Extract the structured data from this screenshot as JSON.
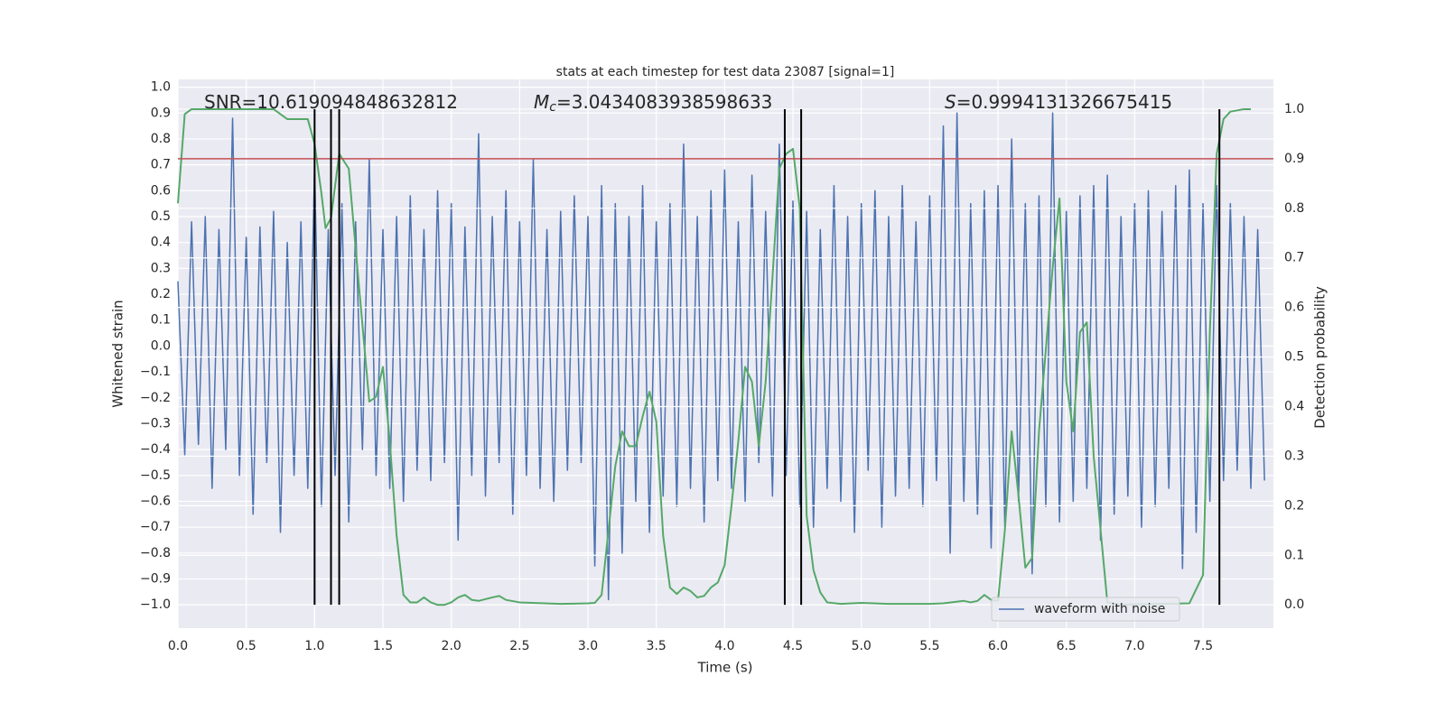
{
  "chart_data": {
    "type": "line",
    "title": "stats at each timestep for test data 23087 [signal=1]",
    "xlabel": "Time (s)",
    "ylabel": "Whitened strain",
    "y2label": "Detection probability",
    "xlim": [
      0,
      8.015
    ],
    "ylim": [
      -1.09,
      1.03
    ],
    "y2lim": [
      -0.047,
      1.06
    ],
    "grid": true,
    "legend": "lower right",
    "xticks": [
      {
        "value": 0,
        "label": "0.0"
      },
      0.5,
      {
        "value": 1,
        "label": "1.0"
      },
      1.5,
      {
        "value": 2,
        "label": "2.0"
      },
      2.5,
      {
        "value": 3,
        "label": "3.0"
      },
      3.5,
      {
        "value": 4,
        "label": "4.0"
      },
      4.5,
      {
        "value": 5,
        "label": "5.0"
      },
      5.5,
      {
        "value": 6,
        "label": "6.0"
      },
      6.5,
      {
        "value": 7,
        "label": "7.0"
      },
      7.5
    ],
    "yticks": [
      {
        "value": -1,
        "label": "−1.0"
      },
      {
        "value": -0.9,
        "label": "−0.9"
      },
      {
        "value": -0.8,
        "label": "−0.8"
      },
      {
        "value": -0.7,
        "label": "−0.7"
      },
      {
        "value": -0.6,
        "label": "−0.6"
      },
      {
        "value": -0.5,
        "label": "−0.5"
      },
      {
        "value": -0.4,
        "label": "−0.4"
      },
      {
        "value": -0.3,
        "label": "−0.3"
      },
      {
        "value": -0.2,
        "label": "−0.2"
      },
      {
        "value": -0.1,
        "label": "−0.1"
      },
      {
        "value": 0,
        "label": "0.0"
      },
      0.1,
      0.2,
      0.3,
      0.4,
      0.5,
      0.6,
      0.7,
      0.8,
      0.9,
      {
        "value": 1,
        "label": "1.0"
      }
    ],
    "y2ticks": [
      {
        "value": 0,
        "label": "0.0"
      },
      0.1,
      0.2,
      0.3,
      0.4,
      0.5,
      0.6,
      0.7,
      0.8,
      0.9,
      {
        "value": 1,
        "label": "1.0"
      }
    ],
    "series": [
      {
        "name": "waveform with noise",
        "color": "#4c72b0",
        "x": [
          0.0,
          0.05,
          0.1,
          0.15,
          0.2,
          0.25,
          0.3,
          0.35,
          0.4,
          0.45,
          0.5,
          0.55,
          0.6,
          0.65,
          0.7,
          0.75,
          0.8,
          0.85,
          0.9,
          0.95,
          1.0,
          1.05,
          1.1,
          1.15,
          1.2,
          1.25,
          1.3,
          1.35,
          1.4,
          1.45,
          1.5,
          1.55,
          1.6,
          1.65,
          1.7,
          1.75,
          1.8,
          1.85,
          1.9,
          1.95,
          2.0,
          2.05,
          2.1,
          2.15,
          2.2,
          2.25,
          2.3,
          2.35,
          2.4,
          2.45,
          2.5,
          2.55,
          2.6,
          2.65,
          2.7,
          2.75,
          2.8,
          2.85,
          2.9,
          2.95,
          3.0,
          3.05,
          3.1,
          3.15,
          3.2,
          3.25,
          3.3,
          3.35,
          3.4,
          3.45,
          3.5,
          3.55,
          3.6,
          3.65,
          3.7,
          3.75,
          3.8,
          3.85,
          3.9,
          3.95,
          4.0,
          4.05,
          4.1,
          4.15,
          4.2,
          4.25,
          4.3,
          4.35,
          4.4,
          4.45,
          4.5,
          4.55,
          4.6,
          4.65,
          4.7,
          4.75,
          4.8,
          4.85,
          4.9,
          4.95,
          5.0,
          5.05,
          5.1,
          5.15,
          5.2,
          5.25,
          5.3,
          5.35,
          5.4,
          5.45,
          5.5,
          5.55,
          5.6,
          5.65,
          5.7,
          5.75,
          5.8,
          5.85,
          5.9,
          5.95,
          6.0,
          6.05,
          6.1,
          6.15,
          6.2,
          6.25,
          6.3,
          6.35,
          6.4,
          6.45,
          6.5,
          6.55,
          6.6,
          6.65,
          6.7,
          6.75,
          6.8,
          6.85,
          6.9,
          6.95,
          7.0,
          7.05,
          7.1,
          7.15,
          7.2,
          7.25,
          7.3,
          7.35,
          7.4,
          7.45,
          7.5,
          7.55,
          7.6,
          7.65,
          7.7,
          7.75,
          7.8,
          7.85,
          7.9,
          7.95
        ],
        "values": [
          0.25,
          -0.42,
          0.48,
          -0.38,
          0.5,
          -0.55,
          0.45,
          -0.4,
          0.88,
          -0.5,
          0.42,
          -0.65,
          0.46,
          -0.45,
          0.52,
          -0.72,
          0.4,
          -0.5,
          0.48,
          -0.55,
          0.7,
          -0.62,
          0.45,
          -0.5,
          0.55,
          -0.68,
          0.48,
          -0.4,
          0.72,
          -0.5,
          0.45,
          -0.55,
          0.5,
          -0.6,
          0.58,
          -0.48,
          0.45,
          -0.52,
          0.6,
          -0.45,
          0.55,
          -0.75,
          0.46,
          -0.5,
          0.82,
          -0.58,
          0.5,
          -0.45,
          0.6,
          -0.65,
          0.48,
          -0.5,
          0.72,
          -0.55,
          0.45,
          -0.6,
          0.52,
          -0.48,
          0.58,
          -0.45,
          0.5,
          -0.85,
          0.62,
          -0.98,
          0.55,
          -0.8,
          0.5,
          -0.6,
          0.62,
          -0.72,
          0.48,
          -0.58,
          0.55,
          -0.62,
          0.78,
          -0.55,
          0.5,
          -0.68,
          0.6,
          -0.52,
          0.68,
          -0.55,
          0.48,
          -0.6,
          0.66,
          -0.45,
          0.52,
          -0.58,
          0.78,
          -0.5,
          0.56,
          -0.62,
          0.52,
          -0.7,
          0.45,
          -0.55,
          0.62,
          -0.6,
          0.5,
          -0.72,
          0.55,
          -0.48,
          0.6,
          -0.7,
          0.5,
          -0.58,
          0.62,
          -0.55,
          0.48,
          -0.62,
          0.58,
          -0.52,
          0.85,
          -0.8,
          0.9,
          -0.6,
          0.55,
          -0.65,
          0.6,
          -0.78,
          0.62,
          -0.7,
          0.8,
          -0.6,
          0.55,
          -0.88,
          0.58,
          -0.62,
          0.9,
          -0.68,
          0.52,
          -0.6,
          0.58,
          -0.55,
          0.62,
          -0.75,
          0.66,
          -0.65,
          0.5,
          -0.58,
          0.55,
          -0.7,
          0.6,
          -0.62,
          0.52,
          -0.55,
          0.62,
          -0.86,
          0.68,
          -0.72,
          0.55,
          -0.6,
          0.62,
          -0.52,
          0.55,
          -0.48,
          0.5,
          -0.55,
          0.45,
          -0.52
        ]
      },
      {
        "color": "#55a868",
        "axis": "y2",
        "x": [
          0,
          0.05,
          0.1,
          0.15,
          0.7,
          0.8,
          0.95,
          1.0,
          1.05,
          1.08,
          1.12,
          1.18,
          1.25,
          1.3,
          1.4,
          1.45,
          1.5,
          1.55,
          1.6,
          1.65,
          1.7,
          1.75,
          1.8,
          1.85,
          1.9,
          1.95,
          2.0,
          2.05,
          2.1,
          2.15,
          2.2,
          2.3,
          2.35,
          2.4,
          2.5,
          2.8,
          3.0,
          3.05,
          3.1,
          3.15,
          3.2,
          3.25,
          3.3,
          3.35,
          3.4,
          3.45,
          3.5,
          3.55,
          3.6,
          3.65,
          3.7,
          3.75,
          3.8,
          3.85,
          3.9,
          3.95,
          4.0,
          4.05,
          4.1,
          4.15,
          4.2,
          4.25,
          4.3,
          4.35,
          4.4,
          4.45,
          4.5,
          4.55,
          4.6,
          4.65,
          4.7,
          4.75,
          4.85,
          5.0,
          5.2,
          5.5,
          5.6,
          5.75,
          5.8,
          5.85,
          5.9,
          5.95,
          6.0,
          6.05,
          6.1,
          6.15,
          6.2,
          6.25,
          6.3,
          6.4,
          6.45,
          6.5,
          6.55,
          6.6,
          6.65,
          6.7,
          6.8,
          6.9,
          7.0,
          7.4,
          7.5,
          7.55,
          7.6,
          7.65,
          7.7,
          7.8,
          7.85
        ],
        "values": [
          0.81,
          0.99,
          1.0,
          1.0,
          1.0,
          0.98,
          0.98,
          0.93,
          0.83,
          0.76,
          0.78,
          0.91,
          0.88,
          0.72,
          0.41,
          0.42,
          0.48,
          0.33,
          0.14,
          0.02,
          0.005,
          0.005,
          0.015,
          0.005,
          0.0,
          0.0,
          0.005,
          0.015,
          0.02,
          0.01,
          0.008,
          0.015,
          0.018,
          0.01,
          0.005,
          0.002,
          0.003,
          0.004,
          0.02,
          0.15,
          0.28,
          0.35,
          0.32,
          0.32,
          0.38,
          0.43,
          0.37,
          0.14,
          0.035,
          0.022,
          0.035,
          0.028,
          0.015,
          0.018,
          0.035,
          0.045,
          0.08,
          0.2,
          0.33,
          0.48,
          0.45,
          0.32,
          0.45,
          0.66,
          0.88,
          0.91,
          0.92,
          0.8,
          0.18,
          0.07,
          0.025,
          0.005,
          0.002,
          0.004,
          0.002,
          0.002,
          0.003,
          0.008,
          0.005,
          0.008,
          0.02,
          0.01,
          0.008,
          0.15,
          0.35,
          0.22,
          0.075,
          0.095,
          0.35,
          0.68,
          0.82,
          0.45,
          0.35,
          0.55,
          0.57,
          0.3,
          0.005,
          0.0,
          0.001,
          0.003,
          0.06,
          0.55,
          0.91,
          0.98,
          0.995,
          1.0,
          1.0
        ]
      }
    ],
    "threshold": {
      "value": 0.9,
      "axis": "y2",
      "color": "#c44e52"
    },
    "vlines": {
      "x": [
        1.0,
        1.12,
        1.18,
        4.44,
        4.56,
        7.62
      ],
      "span": [
        0,
        1.0
      ],
      "axis": "y2",
      "color": "#000000"
    },
    "annotations": [
      {
        "text": "SNR=10.619094848632812"
      },
      {
        "symbol": "M",
        "sub": "c",
        "text": "=3.0434083938598633"
      },
      {
        "symbol": "S",
        "text": "=0.9994131326675415"
      }
    ]
  }
}
